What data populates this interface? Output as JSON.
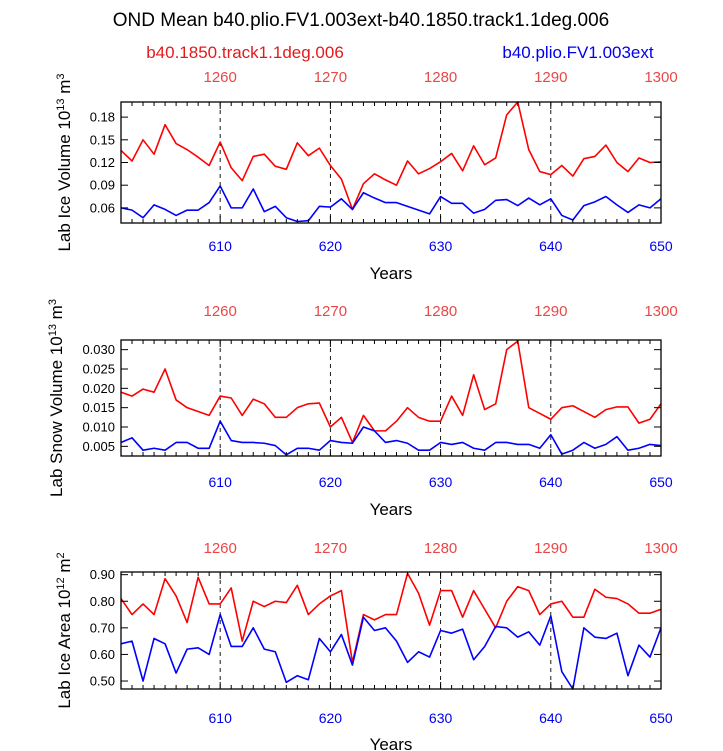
{
  "title": "OND Mean b40.plio.FV1.003ext-b40.1850.track1.1deg.006",
  "legend": [
    {
      "label": "b40.1850.track1.1deg.006",
      "color": "#ff0000"
    },
    {
      "label": "b40.plio.FV1.003ext",
      "color": "#0000ff"
    }
  ],
  "chart_data": [
    {
      "type": "line",
      "ylabel_main": "Lab Ice Volume 10",
      "ylabel_exp": "13",
      "ylabel_unit": " m",
      "ylabel_unit_exp": "3",
      "xlabel": "Years",
      "xlim": [
        601,
        650
      ],
      "ylim": [
        0.04,
        0.2
      ],
      "yticks": [
        0.06,
        0.09,
        0.12,
        0.15,
        0.18
      ],
      "ytick_labels": [
        "0.06",
        "0.09",
        "0.12",
        "0.15",
        "0.18"
      ],
      "bottom_ticks": [
        610,
        620,
        630,
        640,
        650
      ],
      "bottom_tick_labels": [
        "610",
        "620",
        "630",
        "640",
        "650"
      ],
      "top_ticks": [
        610,
        620,
        630,
        640,
        650
      ],
      "top_tick_labels": [
        "1260",
        "1270",
        "1280",
        "1290",
        "1300"
      ],
      "dashed_x": [
        610,
        620,
        630,
        640
      ],
      "x": [
        601,
        602,
        603,
        604,
        605,
        606,
        607,
        608,
        609,
        610,
        611,
        612,
        613,
        614,
        615,
        616,
        617,
        618,
        619,
        620,
        621,
        622,
        623,
        624,
        625,
        626,
        627,
        628,
        629,
        630,
        631,
        632,
        633,
        634,
        635,
        636,
        637,
        638,
        639,
        640,
        641,
        642,
        643,
        644,
        645,
        646,
        647,
        648,
        649,
        650
      ],
      "series": [
        {
          "name": "b40.1850.track1.1deg.006",
          "color": "#ff0000",
          "values": [
            0.136,
            0.122,
            0.15,
            0.131,
            0.17,
            0.145,
            0.137,
            0.127,
            0.116,
            0.147,
            0.113,
            0.096,
            0.128,
            0.131,
            0.115,
            0.111,
            0.146,
            0.129,
            0.139,
            0.116,
            0.098,
            0.058,
            0.092,
            0.105,
            0.097,
            0.09,
            0.122,
            0.105,
            0.112,
            0.121,
            0.132,
            0.109,
            0.142,
            0.117,
            0.126,
            0.183,
            0.2,
            0.137,
            0.108,
            0.104,
            0.116,
            0.102,
            0.125,
            0.128,
            0.143,
            0.12,
            0.108,
            0.126,
            0.12,
            0.121
          ]
        },
        {
          "name": "b40.plio.FV1.003ext",
          "color": "#0000ff",
          "values": [
            0.06,
            0.057,
            0.047,
            0.064,
            0.058,
            0.05,
            0.057,
            0.057,
            0.067,
            0.089,
            0.06,
            0.06,
            0.085,
            0.055,
            0.062,
            0.047,
            0.042,
            0.043,
            0.062,
            0.061,
            0.072,
            0.058,
            0.08,
            0.073,
            0.067,
            0.067,
            0.062,
            0.057,
            0.052,
            0.075,
            0.066,
            0.066,
            0.053,
            0.058,
            0.07,
            0.071,
            0.063,
            0.073,
            0.064,
            0.072,
            0.05,
            0.044,
            0.063,
            0.068,
            0.075,
            0.064,
            0.054,
            0.064,
            0.06,
            0.072
          ]
        }
      ]
    },
    {
      "type": "line",
      "ylabel_main": "Lab Snow Volume 10",
      "ylabel_exp": "13",
      "ylabel_unit": " m",
      "ylabel_unit_exp": "3",
      "xlabel": "Years",
      "xlim": [
        601,
        650
      ],
      "ylim": [
        0.0025,
        0.0325
      ],
      "yticks": [
        0.005,
        0.01,
        0.015,
        0.02,
        0.025,
        0.03
      ],
      "ytick_labels": [
        "0.005",
        "0.010",
        "0.015",
        "0.020",
        "0.025",
        "0.030"
      ],
      "bottom_ticks": [
        610,
        620,
        630,
        640,
        650
      ],
      "bottom_tick_labels": [
        "610",
        "620",
        "630",
        "640",
        "650"
      ],
      "top_ticks": [
        610,
        620,
        630,
        640,
        650
      ],
      "top_tick_labels": [
        "1260",
        "1270",
        "1280",
        "1290",
        "1300"
      ],
      "dashed_x": [
        610,
        620,
        630,
        640
      ],
      "x": [
        601,
        602,
        603,
        604,
        605,
        606,
        607,
        608,
        609,
        610,
        611,
        612,
        613,
        614,
        615,
        616,
        617,
        618,
        619,
        620,
        621,
        622,
        623,
        624,
        625,
        626,
        627,
        628,
        629,
        630,
        631,
        632,
        633,
        634,
        635,
        636,
        637,
        638,
        639,
        640,
        641,
        642,
        643,
        644,
        645,
        646,
        647,
        648,
        649,
        650
      ],
      "series": [
        {
          "name": "b40.1850.track1.1deg.006",
          "color": "#ff0000",
          "values": [
            0.019,
            0.018,
            0.0198,
            0.019,
            0.025,
            0.017,
            0.015,
            0.014,
            0.013,
            0.018,
            0.0175,
            0.013,
            0.0172,
            0.016,
            0.0125,
            0.0125,
            0.015,
            0.016,
            0.0162,
            0.01,
            0.0125,
            0.006,
            0.013,
            0.009,
            0.009,
            0.0115,
            0.015,
            0.0125,
            0.0115,
            0.0115,
            0.018,
            0.013,
            0.0235,
            0.0145,
            0.016,
            0.03,
            0.0322,
            0.015,
            0.0135,
            0.012,
            0.015,
            0.0155,
            0.014,
            0.0125,
            0.0145,
            0.0152,
            0.0152,
            0.011,
            0.012,
            0.016
          ]
        },
        {
          "name": "b40.plio.FV1.003ext",
          "color": "#0000ff",
          "values": [
            0.006,
            0.0072,
            0.004,
            0.0045,
            0.004,
            0.006,
            0.006,
            0.0045,
            0.0045,
            0.0115,
            0.0065,
            0.006,
            0.006,
            0.0058,
            0.0052,
            0.0028,
            0.0045,
            0.0045,
            0.004,
            0.0065,
            0.006,
            0.0058,
            0.01,
            0.009,
            0.006,
            0.0065,
            0.0058,
            0.004,
            0.004,
            0.006,
            0.0055,
            0.006,
            0.0045,
            0.004,
            0.006,
            0.006,
            0.0055,
            0.0055,
            0.0045,
            0.008,
            0.003,
            0.004,
            0.006,
            0.0045,
            0.0055,
            0.0075,
            0.004,
            0.0045,
            0.0055,
            0.0052
          ]
        }
      ]
    },
    {
      "type": "line",
      "ylabel_main": "Lab Ice Area 10",
      "ylabel_exp": "12",
      "ylabel_unit": " m",
      "ylabel_unit_exp": "2",
      "xlabel": "Years",
      "xlim": [
        601,
        650
      ],
      "ylim": [
        0.47,
        0.91
      ],
      "yticks": [
        0.5,
        0.6,
        0.7,
        0.8,
        0.9
      ],
      "ytick_labels": [
        "0.50",
        "0.60",
        "0.70",
        "0.80",
        "0.90"
      ],
      "bottom_ticks": [
        610,
        620,
        630,
        640,
        650
      ],
      "bottom_tick_labels": [
        "610",
        "620",
        "630",
        "640",
        "650"
      ],
      "top_ticks": [
        610,
        620,
        630,
        640,
        650
      ],
      "top_tick_labels": [
        "1260",
        "1270",
        "1280",
        "1290",
        "1300"
      ],
      "dashed_x": [
        610,
        620,
        630,
        640
      ],
      "x": [
        601,
        602,
        603,
        604,
        605,
        606,
        607,
        608,
        609,
        610,
        611,
        612,
        613,
        614,
        615,
        616,
        617,
        618,
        619,
        620,
        621,
        622,
        623,
        624,
        625,
        626,
        627,
        628,
        629,
        630,
        631,
        632,
        633,
        634,
        635,
        636,
        637,
        638,
        639,
        640,
        641,
        642,
        643,
        644,
        645,
        646,
        647,
        648,
        649,
        650
      ],
      "series": [
        {
          "name": "b40.1850.track1.1deg.006",
          "color": "#ff0000",
          "values": [
            0.81,
            0.75,
            0.79,
            0.75,
            0.885,
            0.82,
            0.72,
            0.89,
            0.79,
            0.79,
            0.85,
            0.65,
            0.8,
            0.78,
            0.8,
            0.795,
            0.86,
            0.75,
            0.79,
            0.82,
            0.84,
            0.57,
            0.75,
            0.73,
            0.75,
            0.75,
            0.905,
            0.83,
            0.71,
            0.84,
            0.84,
            0.74,
            0.84,
            0.77,
            0.7,
            0.8,
            0.855,
            0.84,
            0.75,
            0.79,
            0.8,
            0.74,
            0.74,
            0.845,
            0.815,
            0.81,
            0.79,
            0.755,
            0.755,
            0.77
          ]
        },
        {
          "name": "b40.plio.FV1.003ext",
          "color": "#0000ff",
          "values": [
            0.64,
            0.65,
            0.5,
            0.66,
            0.64,
            0.53,
            0.62,
            0.625,
            0.6,
            0.75,
            0.63,
            0.63,
            0.7,
            0.62,
            0.61,
            0.495,
            0.52,
            0.505,
            0.66,
            0.61,
            0.675,
            0.56,
            0.74,
            0.69,
            0.7,
            0.65,
            0.57,
            0.61,
            0.59,
            0.69,
            0.68,
            0.695,
            0.58,
            0.63,
            0.705,
            0.7,
            0.665,
            0.685,
            0.635,
            0.745,
            0.535,
            0.47,
            0.7,
            0.665,
            0.66,
            0.68,
            0.52,
            0.635,
            0.59,
            0.7
          ]
        }
      ]
    }
  ]
}
